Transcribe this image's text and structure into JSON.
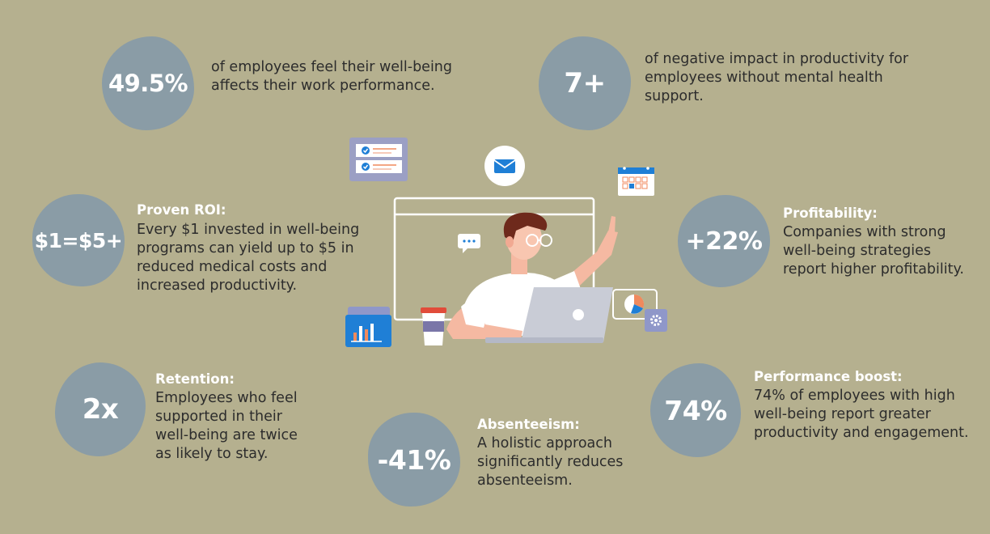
{
  "stats": [
    {
      "value": "49.5%",
      "text": "of employees feel their well-being affects their work performance."
    },
    {
      "value": "7+",
      "text": "of negative impact in productivity for employees without mental health support."
    },
    {
      "value": "$1=$5+",
      "title": "Proven ROI:",
      "text": "Every $1 invested in well-being programs can yield up to $5 in reduced medical costs and increased productivity."
    },
    {
      "value": "+22%",
      "title": "Profitability:",
      "text": "Companies with strong well-being strategies report higher profitability."
    },
    {
      "value": "2x",
      "title": "Retention:",
      "text": "Employees who feel supported in their well-being are twice as likely to stay."
    },
    {
      "value": "74%",
      "title": "Performance boost:",
      "text": "74% of employees with high well-being report greater productivity and engagement."
    },
    {
      "value": "-41%",
      "title": "Absenteeism:",
      "text": "A holistic approach significantly reduces absenteeism."
    }
  ],
  "colors": {
    "background": "#b5b08f",
    "blob": "#8a9ca6",
    "title_text": "#ffffff",
    "body_text": "#2c2c2c",
    "accent_blue": "#1f7fd6",
    "accent_orange": "#f08a5d"
  },
  "illustration": {
    "icons": [
      "checklist-icon",
      "mail-icon",
      "calendar-icon",
      "chat-bubble-icon",
      "bar-chart-icon",
      "pie-chart-icon",
      "gear-icon",
      "coffee-cup-icon",
      "laptop-icon"
    ]
  }
}
